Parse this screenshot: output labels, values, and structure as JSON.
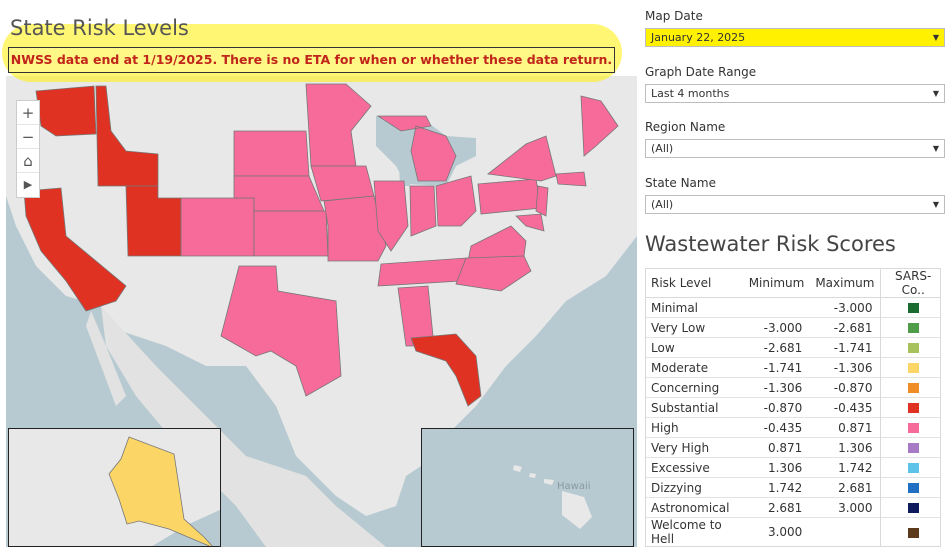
{
  "map": {
    "title": "State Risk Levels",
    "notice": "NWSS data end at 1/19/2025. There is no ETA for when or whether these data return.",
    "hawaii_label": "Hawaii",
    "controls": {
      "zoom_in": "+",
      "zoom_out": "−",
      "home": "⌂",
      "play": "▶"
    }
  },
  "filters": [
    {
      "label": "Map Date",
      "value": "January 22, 2025"
    },
    {
      "label": "Graph Date Range",
      "value": "Last 4 months"
    },
    {
      "label": "Region Name",
      "value": "(All)"
    },
    {
      "label": "State Name",
      "value": "(All)"
    }
  ],
  "legend": {
    "title": "Wastewater Risk Scores",
    "headers": [
      "Risk Level",
      "Minimum",
      "Maximum",
      "SARS-Co.."
    ],
    "rows": [
      {
        "level": "Minimal",
        "min": "",
        "max": "-3.000",
        "color": "#1a6b30"
      },
      {
        "level": "Very Low",
        "min": "-3.000",
        "max": "-2.681",
        "color": "#4f9d49"
      },
      {
        "level": "Low",
        "min": "-2.681",
        "max": "-1.741",
        "color": "#a7c25b"
      },
      {
        "level": "Moderate",
        "min": "-1.741",
        "max": "-1.306",
        "color": "#fbd666"
      },
      {
        "level": "Concerning",
        "min": "-1.306",
        "max": "-0.870",
        "color": "#f08d24"
      },
      {
        "level": "Substantial",
        "min": "-0.870",
        "max": "-0.435",
        "color": "#df3223"
      },
      {
        "level": "High",
        "min": "-0.435",
        "max": "0.871",
        "color": "#f66b9a"
      },
      {
        "level": "Very High",
        "min": "0.871",
        "max": "1.306",
        "color": "#a77ac5"
      },
      {
        "level": "Excessive",
        "min": "1.306",
        "max": "1.742",
        "color": "#5ec3e8"
      },
      {
        "level": "Dizzying",
        "min": "1.742",
        "max": "2.681",
        "color": "#1f6fc2"
      },
      {
        "level": "Astronomical",
        "min": "2.681",
        "max": "3.000",
        "color": "#0d1a5c"
      },
      {
        "level": "Welcome to Hell",
        "min": "3.000",
        "max": "",
        "color": "#5e3a1d"
      }
    ]
  },
  "colors": {
    "water": "#b7cad1",
    "land": "#e8e8e8",
    "high": "#f66b9a",
    "substantial": "#df3223",
    "moderate": "#fbd666",
    "highlighter": "#fff100",
    "notice_text": "#c0241a"
  },
  "state_risk": {
    "Washington": "Substantial",
    "Idaho": "Substantial",
    "Utah": "Substantial",
    "California": "Substantial",
    "Florida": "Substantial",
    "Colorado": "High",
    "South Dakota": "High",
    "Nebraska": "High",
    "Kansas": "High",
    "Texas": "High",
    "Minnesota": "High",
    "Iowa": "High",
    "Missouri": "High",
    "Illinois": "High",
    "Indiana": "High",
    "Michigan": "High",
    "Ohio": "High",
    "Pennsylvania": "High",
    "New York": "High",
    "Maine": "High",
    "Massachusetts": "High",
    "New Jersey": "High",
    "Virginia": "High",
    "North Carolina": "High",
    "Tennessee": "High",
    "Alabama": "High",
    "Maryland": "High",
    "Alaska": "Moderate"
  }
}
